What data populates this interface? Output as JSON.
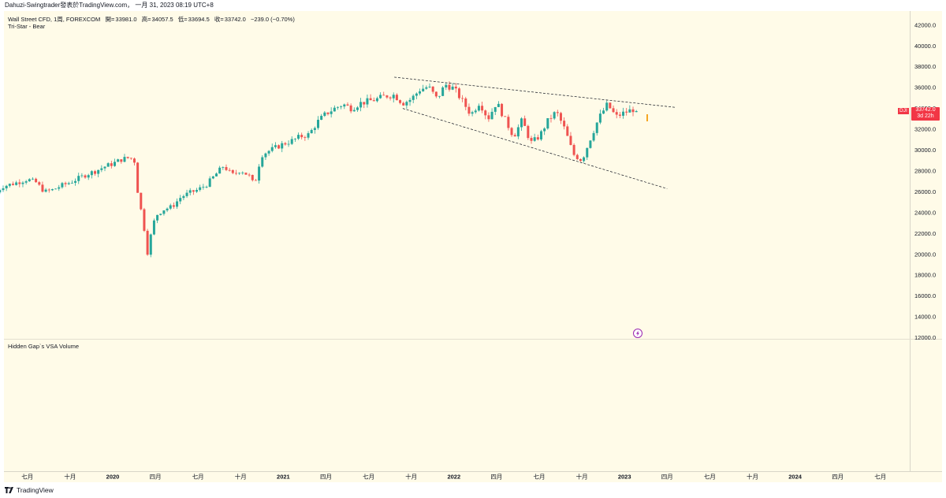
{
  "header": {
    "text": "Dahuzi-Swingtrader發表於TradingView.com， 一月 31, 2023 08:19 UTC+8"
  },
  "legend": {
    "symbol": "Wall Street CFD, 1周, FOREXCOM",
    "open_label": "開=",
    "open": "33981.0",
    "high_label": "高=",
    "high": "34057.5",
    "low_label": "低=",
    "low": "33694.5",
    "close_label": "收=",
    "close": "33742.0",
    "change": "−239.0 (−0.70%)",
    "indicator": "Tri-Star - Bear"
  },
  "lower_pane": {
    "indicator": "Hidden Gap`s VSA Volume"
  },
  "price_badge": {
    "symbol": "DJI",
    "price": "33742.0",
    "countdown": "3d 22h",
    "color": "#f23645"
  },
  "footer": {
    "brand": "TradingView"
  },
  "colors": {
    "up": "#26a69a",
    "down": "#ef5350",
    "background": "#fffbe8",
    "marker": "#f5a623",
    "flash": "#9c27b0"
  },
  "icons": {
    "flash": "lightning-icon",
    "logo": "tradingview-logo-icon"
  },
  "chart_data": {
    "type": "candlestick",
    "timeframe": "1W",
    "price_axis": {
      "ticks": [
        "42000.0",
        "40000.0",
        "38000.0",
        "36000.0",
        "34000.0",
        "32000.0",
        "30000.0",
        "28000.0",
        "26000.0",
        "24000.0",
        "22000.0",
        "20000.0",
        "18000.0",
        "16000.0",
        "14000.0",
        "12000.0"
      ],
      "range": [
        12000,
        43500
      ]
    },
    "time_axis": {
      "ticks": [
        {
          "label": "七月",
          "t": 2019.5,
          "year": false
        },
        {
          "label": "十月",
          "t": 2019.75,
          "year": false
        },
        {
          "label": "2020",
          "t": 2020.0,
          "year": true
        },
        {
          "label": "四月",
          "t": 2020.25,
          "year": false
        },
        {
          "label": "七月",
          "t": 2020.5,
          "year": false
        },
        {
          "label": "十月",
          "t": 2020.75,
          "year": false
        },
        {
          "label": "2021",
          "t": 2021.0,
          "year": true
        },
        {
          "label": "四月",
          "t": 2021.25,
          "year": false
        },
        {
          "label": "七月",
          "t": 2021.5,
          "year": false
        },
        {
          "label": "十月",
          "t": 2021.75,
          "year": false
        },
        {
          "label": "2022",
          "t": 2022.0,
          "year": true
        },
        {
          "label": "四月",
          "t": 2022.25,
          "year": false
        },
        {
          "label": "七月",
          "t": 2022.5,
          "year": false
        },
        {
          "label": "十月",
          "t": 2022.75,
          "year": false
        },
        {
          "label": "2023",
          "t": 2023.0,
          "year": true
        },
        {
          "label": "四月",
          "t": 2023.25,
          "year": false
        },
        {
          "label": "七月",
          "t": 2023.5,
          "year": false
        },
        {
          "label": "十月",
          "t": 2023.75,
          "year": false
        },
        {
          "label": "2024",
          "t": 2024.0,
          "year": true
        },
        {
          "label": "四月",
          "t": 2024.25,
          "year": false
        },
        {
          "label": "七月",
          "t": 2024.5,
          "year": false
        }
      ]
    },
    "close_path": [
      [
        2019.3,
        25600
      ],
      [
        2019.35,
        26500
      ],
      [
        2019.42,
        26800
      ],
      [
        2019.5,
        27200
      ],
      [
        2019.55,
        26900
      ],
      [
        2019.6,
        26000
      ],
      [
        2019.65,
        26200
      ],
      [
        2019.7,
        26600
      ],
      [
        2019.75,
        26900
      ],
      [
        2019.8,
        27300
      ],
      [
        2019.85,
        27700
      ],
      [
        2019.9,
        28000
      ],
      [
        2019.95,
        28400
      ],
      [
        2020.0,
        28700
      ],
      [
        2020.05,
        29100
      ],
      [
        2020.1,
        29300
      ],
      [
        2020.13,
        28900
      ],
      [
        2020.15,
        25400
      ],
      [
        2020.18,
        23200
      ],
      [
        2020.2,
        19800
      ],
      [
        2020.22,
        21600
      ],
      [
        2020.25,
        23700
      ],
      [
        2020.3,
        24300
      ],
      [
        2020.35,
        24600
      ],
      [
        2020.4,
        25500
      ],
      [
        2020.45,
        25900
      ],
      [
        2020.5,
        26200
      ],
      [
        2020.55,
        26700
      ],
      [
        2020.6,
        27600
      ],
      [
        2020.65,
        28500
      ],
      [
        2020.7,
        27600
      ],
      [
        2020.75,
        28100
      ],
      [
        2020.8,
        27500
      ],
      [
        2020.83,
        26600
      ],
      [
        2020.87,
        29500
      ],
      [
        2020.9,
        29800
      ],
      [
        2020.95,
        30200
      ],
      [
        2021.0,
        30600
      ],
      [
        2021.05,
        30900
      ],
      [
        2021.1,
        31300
      ],
      [
        2021.15,
        31500
      ],
      [
        2021.2,
        32700
      ],
      [
        2021.25,
        33500
      ],
      [
        2021.3,
        34000
      ],
      [
        2021.35,
        34400
      ],
      [
        2021.4,
        34000
      ],
      [
        2021.45,
        34500
      ],
      [
        2021.5,
        34700
      ],
      [
        2021.55,
        34900
      ],
      [
        2021.6,
        35200
      ],
      [
        2021.65,
        35300
      ],
      [
        2021.7,
        34500
      ],
      [
        2021.75,
        34900
      ],
      [
        2021.8,
        35800
      ],
      [
        2021.85,
        36100
      ],
      [
        2021.9,
        34900
      ],
      [
        2021.95,
        36300
      ],
      [
        2022.0,
        35900
      ],
      [
        2022.05,
        34700
      ],
      [
        2022.1,
        33400
      ],
      [
        2022.15,
        34600
      ],
      [
        2022.2,
        33000
      ],
      [
        2022.25,
        34600
      ],
      [
        2022.3,
        32900
      ],
      [
        2022.35,
        31300
      ],
      [
        2022.4,
        32900
      ],
      [
        2022.45,
        30700
      ],
      [
        2022.5,
        31300
      ],
      [
        2022.55,
        32800
      ],
      [
        2022.6,
        33700
      ],
      [
        2022.65,
        32000
      ],
      [
        2022.7,
        29600
      ],
      [
        2022.75,
        29000
      ],
      [
        2022.8,
        31100
      ],
      [
        2022.85,
        33100
      ],
      [
        2022.9,
        34400
      ],
      [
        2022.95,
        33200
      ],
      [
        2023.0,
        33600
      ],
      [
        2023.05,
        33900
      ],
      [
        2023.08,
        33742
      ]
    ],
    "trendlines": [
      {
        "from": [
          2021.65,
          37000
        ],
        "to": [
          2023.3,
          34100
        ],
        "style": "dashed"
      },
      {
        "from": [
          2021.7,
          34000
        ],
        "to": [
          2023.25,
          26300
        ],
        "style": "dashed"
      }
    ],
    "last_price": 33742.0
  }
}
